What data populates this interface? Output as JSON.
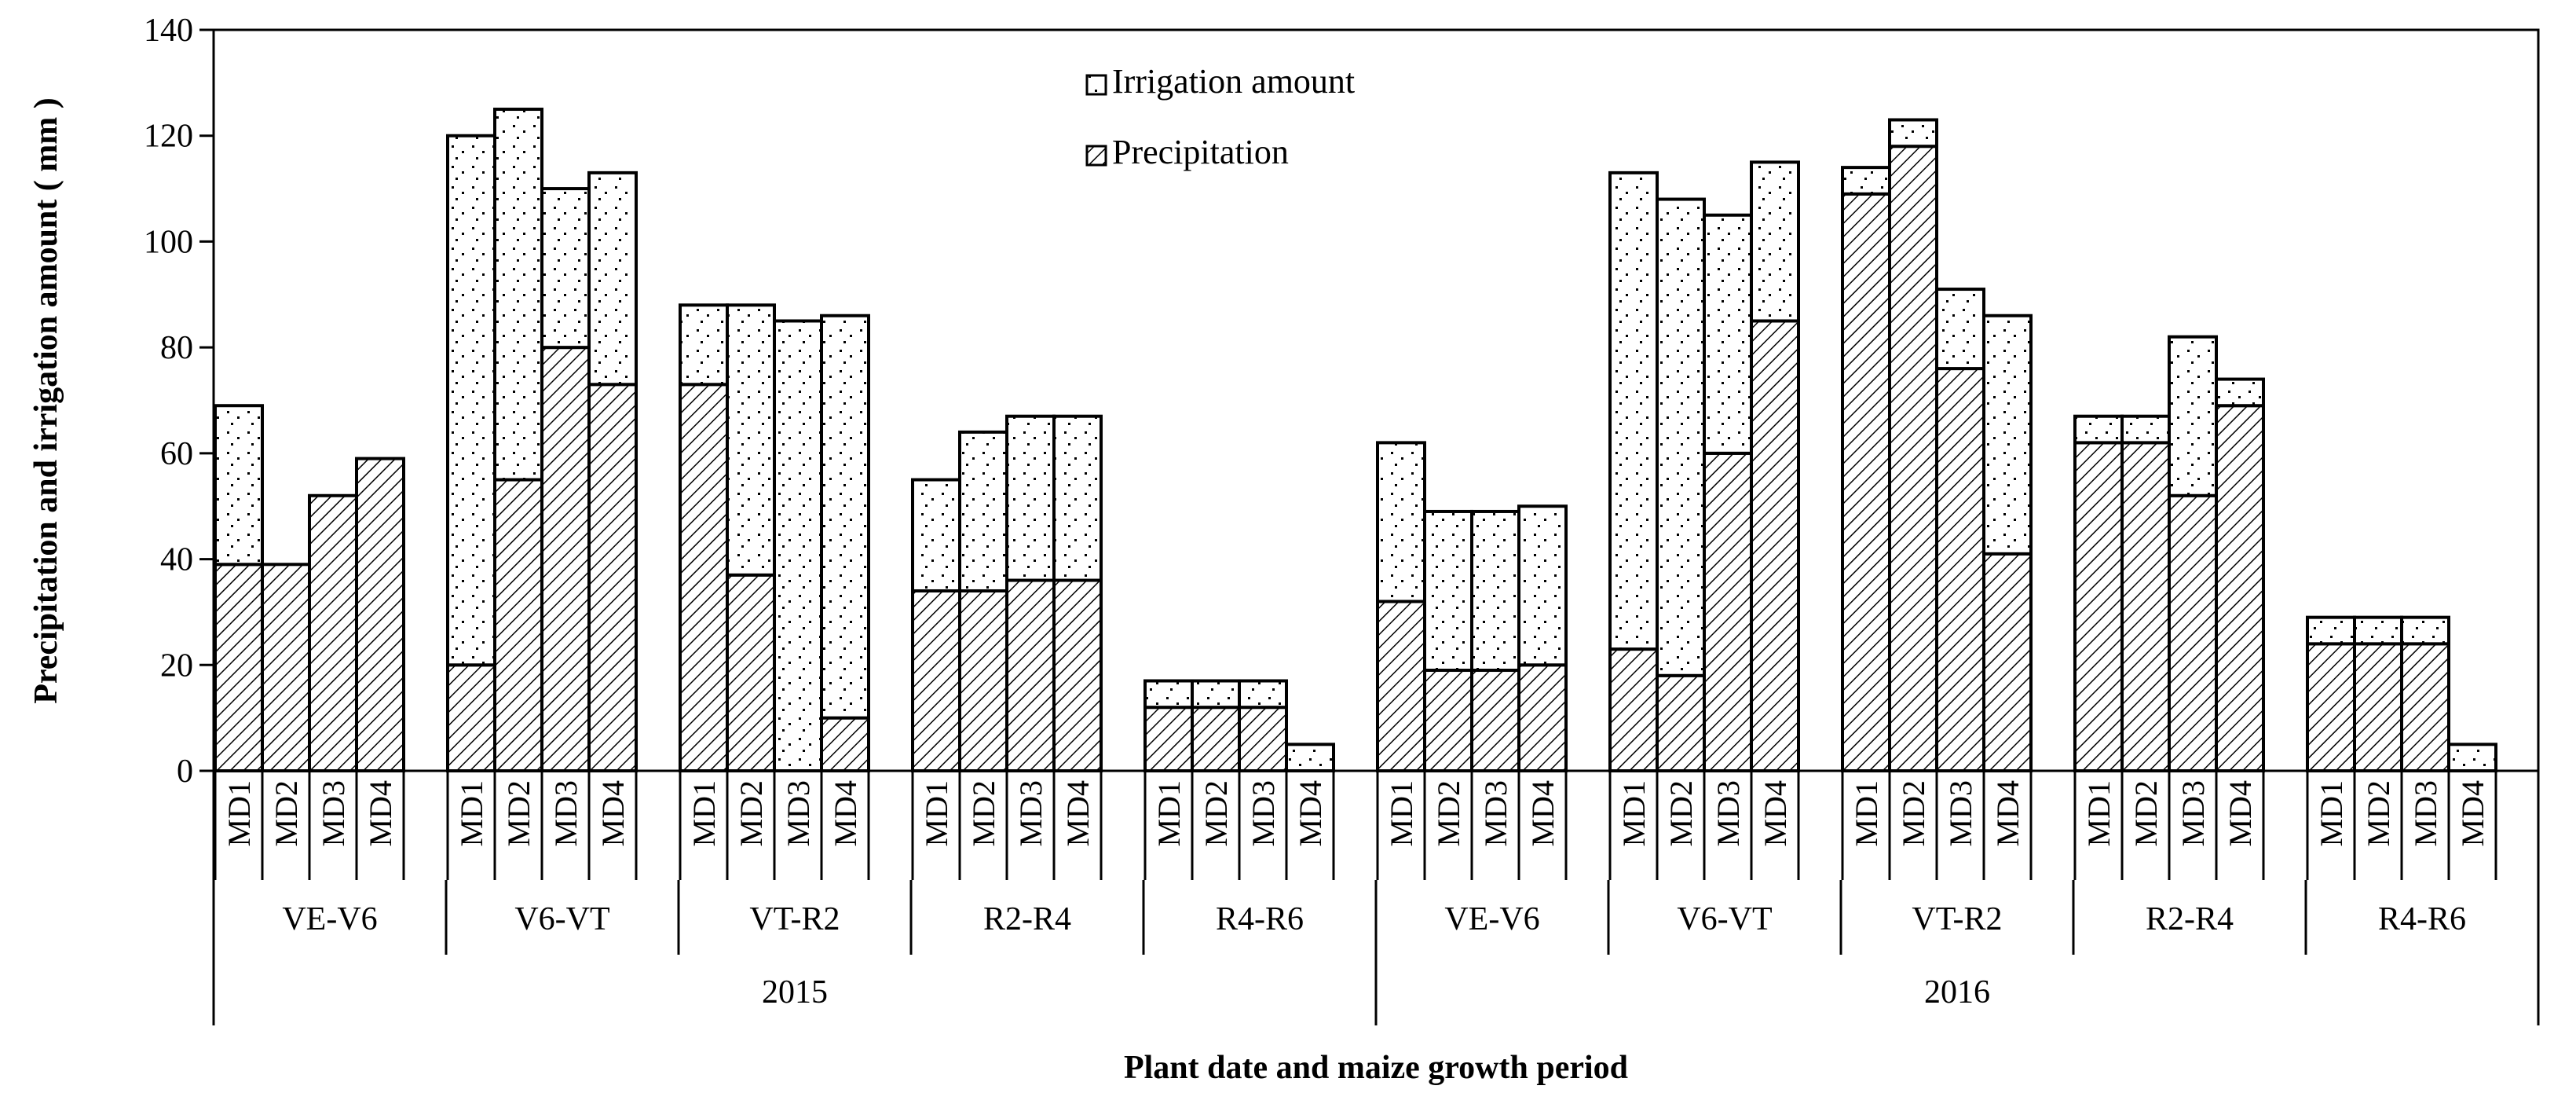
{
  "chart_data": {
    "type": "bar",
    "stacked": true,
    "title": "",
    "xlabel": "Plant date and maize growth period",
    "ylabel": "Precipitation and irrigation amount ( mm )",
    "ylim": [
      0,
      140
    ],
    "yticks": [
      0,
      20,
      40,
      60,
      80,
      100,
      120,
      140
    ],
    "legend": {
      "position": "top-center",
      "entries": [
        "Irrigation amount",
        "Precipitation"
      ]
    },
    "years": [
      "2015",
      "2016"
    ],
    "periods": [
      "VE-V6",
      "V6-VT",
      "VT-R2",
      "R2-R4",
      "R4-R6"
    ],
    "treatments": [
      "MD1",
      "MD2",
      "MD3",
      "MD4"
    ],
    "categories": [
      "MD1",
      "MD2",
      "MD3",
      "MD4",
      "MD1",
      "MD2",
      "MD3",
      "MD4",
      "MD1",
      "MD2",
      "MD3",
      "MD4",
      "MD1",
      "MD2",
      "MD3",
      "MD4",
      "MD1",
      "MD2",
      "MD3",
      "MD4",
      "MD1",
      "MD2",
      "MD3",
      "MD4",
      "MD1",
      "MD2",
      "MD3",
      "MD4",
      "MD1",
      "MD2",
      "MD3",
      "MD4",
      "MD1",
      "MD2",
      "MD3",
      "MD4",
      "MD1",
      "MD2",
      "MD3",
      "MD4"
    ],
    "series": [
      {
        "name": "Precipitation",
        "pattern": "hatch",
        "values": [
          39,
          39,
          52,
          59,
          20,
          55,
          80,
          73,
          73,
          37,
          0,
          10,
          34,
          34,
          36,
          36,
          12,
          12,
          12,
          0,
          32,
          19,
          19,
          20,
          23,
          18,
          60,
          85,
          109,
          118,
          76,
          41,
          62,
          62,
          52,
          69,
          24,
          24,
          24,
          0
        ]
      },
      {
        "name": "Irrigation amount",
        "pattern": "dots",
        "values": [
          30,
          0,
          0,
          0,
          100,
          70,
          30,
          40,
          15,
          51,
          85,
          76,
          21,
          30,
          31,
          31,
          5,
          5,
          5,
          5,
          30,
          30,
          30,
          30,
          90,
          90,
          45,
          30,
          5,
          5,
          15,
          45,
          5,
          5,
          30,
          5,
          5,
          5,
          5,
          5
        ]
      }
    ]
  }
}
